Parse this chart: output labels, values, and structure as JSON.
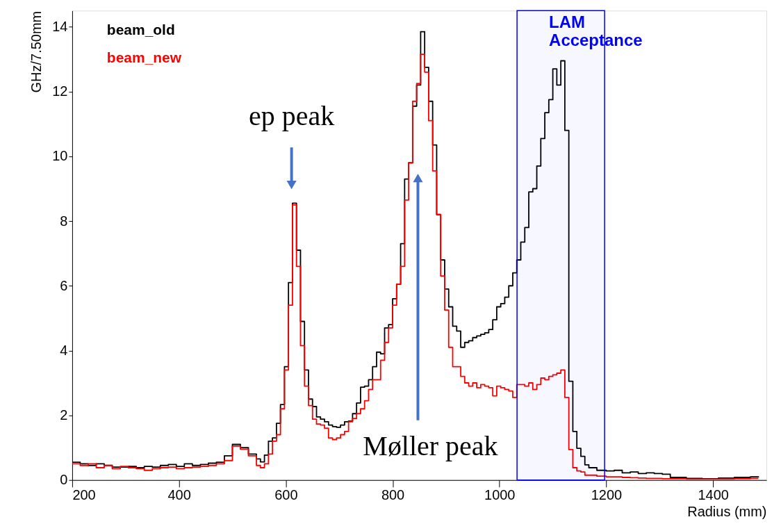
{
  "chart_data": {
    "type": "step",
    "xlabel": "Radius (mm)",
    "ylabel": "GHz/7.50mm",
    "xlim": [
      200,
      1500
    ],
    "xticks": [
      200,
      400,
      600,
      800,
      1000,
      1200,
      1400
    ],
    "ylim": [
      0,
      14.5
    ],
    "yticks": [
      0,
      2,
      4,
      6,
      8,
      10,
      12,
      14
    ],
    "grid": false,
    "legend": "top left",
    "x": [
      200,
      215,
      230,
      245,
      260,
      275,
      290,
      305,
      320,
      335,
      350,
      365,
      380,
      395,
      410,
      425,
      440,
      455,
      470,
      485,
      500,
      515,
      530,
      545,
      552.5,
      560,
      567.5,
      575,
      582.5,
      590,
      597.5,
      605,
      612.5,
      620,
      627.5,
      635,
      642.5,
      650,
      657.5,
      665,
      672.5,
      680,
      687.5,
      695,
      702.5,
      710,
      717.5,
      725,
      732.5,
      740,
      747.5,
      755,
      762.5,
      770,
      777.5,
      785,
      792.5,
      800,
      807.5,
      815,
      822.5,
      830,
      837.5,
      845,
      852.5,
      860,
      867.5,
      875,
      882.5,
      890,
      897.5,
      905,
      912.5,
      920,
      927.5,
      935,
      942.5,
      950,
      957.5,
      965,
      972.5,
      980,
      987.5,
      995,
      1002.5,
      1010,
      1017.5,
      1025,
      1032.5,
      1040,
      1047.5,
      1055,
      1062.5,
      1070,
      1077.5,
      1085,
      1092.5,
      1100,
      1107.5,
      1115,
      1122.5,
      1130,
      1137.5,
      1145,
      1152.5,
      1160,
      1167.5,
      1182.5,
      1200,
      1215,
      1230,
      1245,
      1260,
      1275,
      1290,
      1305,
      1320,
      1350,
      1380,
      1410,
      1440,
      1470,
      1485
    ],
    "series": [
      {
        "name": "beam_old",
        "color": "#000000",
        "values": [
          0.55,
          0.5,
          0.45,
          0.5,
          0.45,
          0.4,
          0.4,
          0.42,
          0.38,
          0.42,
          0.4,
          0.45,
          0.48,
          0.42,
          0.5,
          0.45,
          0.48,
          0.52,
          0.55,
          0.75,
          1.1,
          1.0,
          0.8,
          0.65,
          0.56,
          0.77,
          1.2,
          1.3,
          1.75,
          2.33,
          3.5,
          6.1,
          8.55,
          7.1,
          4.9,
          3.4,
          2.5,
          2.27,
          1.95,
          1.88,
          1.8,
          1.7,
          1.65,
          1.63,
          1.7,
          1.8,
          1.82,
          2.05,
          2.38,
          2.87,
          2.9,
          3.1,
          3.5,
          3.95,
          3.9,
          4.7,
          4.8,
          5.6,
          6.05,
          7.3,
          9.3,
          9.8,
          11.55,
          12.2,
          13.85,
          12.75,
          11.7,
          10.35,
          8.2,
          6.8,
          5.9,
          5.35,
          4.75,
          4.6,
          4.1,
          4.25,
          4.3,
          4.4,
          4.45,
          4.5,
          4.55,
          4.65,
          4.95,
          5.35,
          5.45,
          5.65,
          6.0,
          6.4,
          6.8,
          7.35,
          7.8,
          8.9,
          9.0,
          9.7,
          10.55,
          11.35,
          11.75,
          12.7,
          12.2,
          12.95,
          10.8,
          3.05,
          1.5,
          0.98,
          0.73,
          0.47,
          0.38,
          0.3,
          0.28,
          0.3,
          0.22,
          0.25,
          0.2,
          0.22,
          0.2,
          0.18,
          0.08,
          0.05,
          0.04,
          0.06,
          0.08,
          0.1,
          0.08
        ]
      },
      {
        "name": "beam_new",
        "color": "#ff0000",
        "values": [
          0.5,
          0.45,
          0.5,
          0.38,
          0.45,
          0.35,
          0.42,
          0.38,
          0.35,
          0.3,
          0.35,
          0.38,
          0.4,
          0.35,
          0.38,
          0.4,
          0.42,
          0.45,
          0.5,
          0.6,
          1.05,
          0.95,
          0.75,
          0.45,
          0.38,
          0.5,
          0.8,
          1.2,
          1.4,
          2.2,
          3.4,
          5.4,
          8.5,
          6.6,
          4.15,
          2.9,
          2.3,
          1.88,
          1.73,
          1.7,
          1.6,
          1.3,
          1.25,
          1.3,
          1.4,
          1.5,
          1.8,
          1.9,
          2.05,
          2.2,
          2.45,
          2.8,
          3.1,
          3.1,
          3.7,
          4.25,
          4.7,
          5.4,
          6.05,
          6.6,
          8.65,
          9.8,
          11.7,
          12.25,
          13.15,
          12.6,
          11.1,
          9.55,
          8.2,
          6.3,
          5.25,
          4.1,
          3.5,
          3.5,
          3.2,
          3.0,
          2.9,
          3.0,
          2.85,
          2.95,
          2.9,
          2.85,
          2.6,
          2.9,
          2.85,
          2.8,
          2.75,
          2.55,
          2.95,
          2.95,
          2.9,
          3.0,
          2.8,
          2.95,
          3.15,
          3.1,
          3.2,
          3.25,
          3.3,
          3.4,
          2.55,
          0.94,
          0.38,
          0.28,
          0.25,
          0.15,
          0.15,
          0.12,
          0.1,
          0.1,
          0.08,
          0.07,
          0.06,
          0.05,
          0.05,
          0.04,
          0.04,
          0.03,
          0.03,
          0.03,
          0.04,
          0.05,
          0.05
        ]
      }
    ],
    "bands": [
      {
        "axis": "x",
        "from": 1033,
        "to": 1197,
        "label": "LAM Acceptance",
        "color": "#0000ff"
      }
    ],
    "annotations": [
      "ep peak",
      "Møller peak"
    ]
  }
}
